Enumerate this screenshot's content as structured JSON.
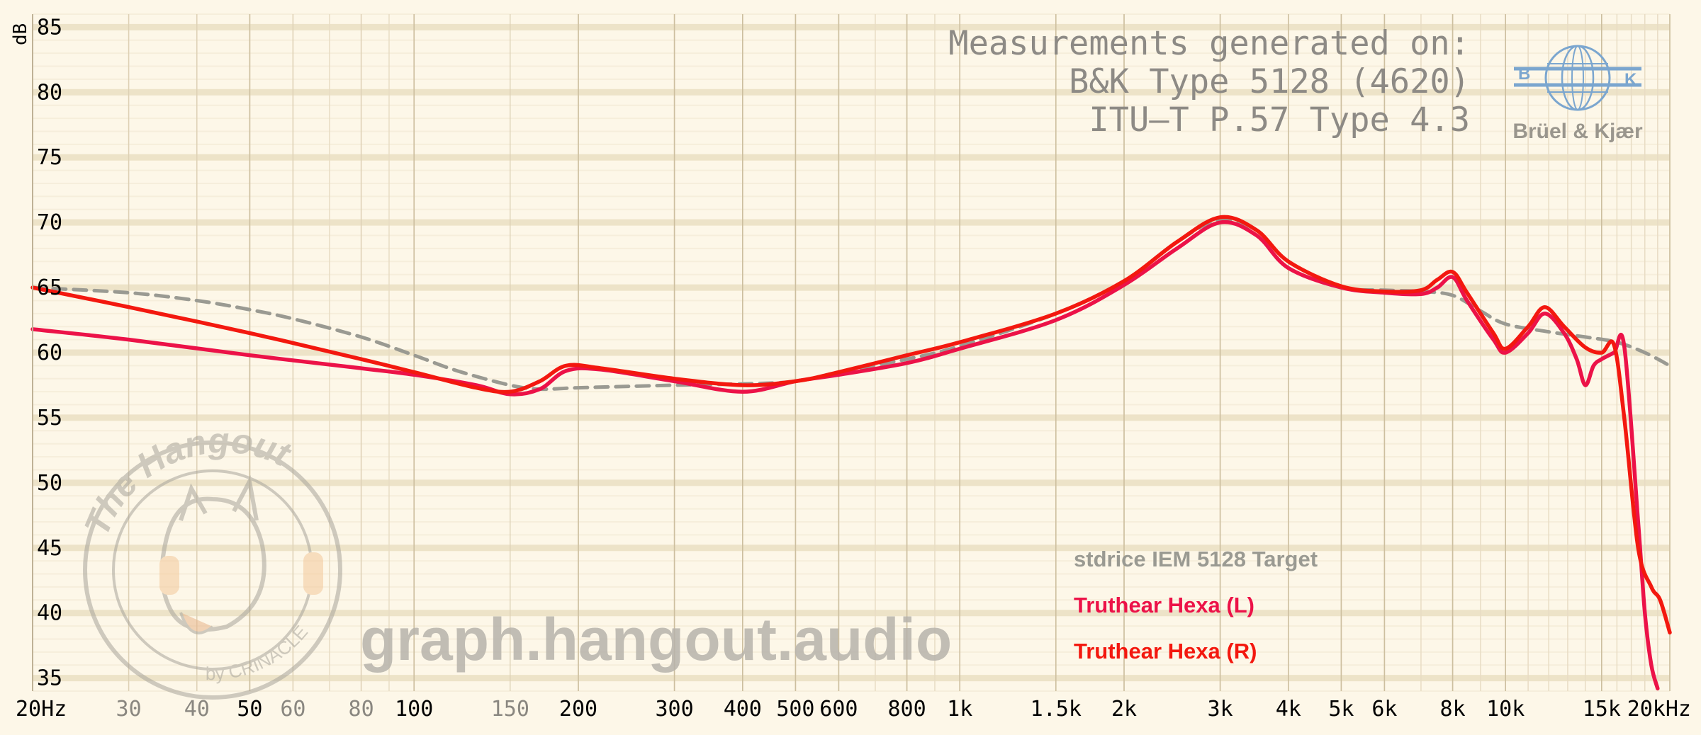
{
  "chart_data": {
    "type": "line",
    "ylabel": "dB",
    "xscale": "log",
    "xlim": [
      20,
      20000
    ],
    "ylim": [
      34,
      86
    ],
    "grid": true,
    "x_ticks": [
      {
        "value": 20,
        "label": "20Hz",
        "major": true
      },
      {
        "value": 30,
        "label": "30",
        "major": false
      },
      {
        "value": 40,
        "label": "40",
        "major": false
      },
      {
        "value": 50,
        "label": "50",
        "major": true
      },
      {
        "value": 60,
        "label": "60",
        "major": false
      },
      {
        "value": 80,
        "label": "80",
        "major": false
      },
      {
        "value": 100,
        "label": "100",
        "major": true
      },
      {
        "value": 150,
        "label": "150",
        "major": false
      },
      {
        "value": 200,
        "label": "200",
        "major": true
      },
      {
        "value": 300,
        "label": "300",
        "major": true
      },
      {
        "value": 400,
        "label": "400",
        "major": true
      },
      {
        "value": 500,
        "label": "500",
        "major": true
      },
      {
        "value": 600,
        "label": "600",
        "major": true
      },
      {
        "value": 800,
        "label": "800",
        "major": true
      },
      {
        "value": 1000,
        "label": "1k",
        "major": true
      },
      {
        "value": 1500,
        "label": "1.5k",
        "major": true
      },
      {
        "value": 2000,
        "label": "2k",
        "major": true
      },
      {
        "value": 3000,
        "label": "3k",
        "major": true
      },
      {
        "value": 4000,
        "label": "4k",
        "major": true
      },
      {
        "value": 5000,
        "label": "5k",
        "major": true
      },
      {
        "value": 6000,
        "label": "6k",
        "major": true
      },
      {
        "value": 8000,
        "label": "8k",
        "major": true
      },
      {
        "value": 10000,
        "label": "10k",
        "major": true
      },
      {
        "value": 15000,
        "label": "15k",
        "major": true
      },
      {
        "value": 20000,
        "label": "20kHz",
        "major": true
      }
    ],
    "y_ticks": [
      35,
      40,
      45,
      50,
      55,
      60,
      65,
      70,
      75,
      80,
      85
    ],
    "series": [
      {
        "name": "stdrice IEM 5128 Target",
        "color": "#9a9a92",
        "dash": true,
        "x": [
          20,
          30,
          40,
          50,
          60,
          80,
          100,
          120,
          150,
          170,
          200,
          300,
          400,
          500,
          600,
          800,
          1000,
          1500,
          2000,
          2500,
          3000,
          3500,
          4000,
          5000,
          6000,
          7000,
          8000,
          9000,
          10000,
          12000,
          14000,
          16000,
          18000,
          20000
        ],
        "values": [
          65.0,
          64.6,
          64.0,
          63.3,
          62.6,
          61.2,
          59.8,
          58.6,
          57.5,
          57.2,
          57.3,
          57.5,
          57.6,
          57.8,
          58.5,
          59.5,
          60.5,
          63.0,
          65.5,
          68.5,
          70.2,
          69.0,
          66.5,
          65.0,
          64.8,
          64.7,
          64.4,
          63.2,
          62.2,
          61.6,
          61.2,
          60.8,
          60.0,
          59.0
        ]
      },
      {
        "name": "Truthear Hexa (L)",
        "color": "#ec1248",
        "dash": false,
        "x": [
          20,
          30,
          50,
          80,
          100,
          130,
          150,
          170,
          190,
          220,
          300,
          400,
          500,
          600,
          800,
          1000,
          1500,
          2000,
          2500,
          3000,
          3500,
          4000,
          5000,
          6000,
          7000,
          7500,
          8000,
          8500,
          9500,
          10000,
          11000,
          11800,
          12800,
          13500,
          14000,
          14500,
          15000,
          15800,
          16500,
          17500,
          18000,
          18500,
          19000
        ],
        "values": [
          61.8,
          61.0,
          59.8,
          58.8,
          58.3,
          57.5,
          56.8,
          57.2,
          58.6,
          58.7,
          57.8,
          57.0,
          57.8,
          58.3,
          59.2,
          60.3,
          62.5,
          65.2,
          68.0,
          70.0,
          69.0,
          66.5,
          65.0,
          64.6,
          64.5,
          65.0,
          65.8,
          64.0,
          61.0,
          60.0,
          61.5,
          63.0,
          61.5,
          59.5,
          57.5,
          59.0,
          59.5,
          60.0,
          60.5,
          47.0,
          40.0,
          36.0,
          34.2
        ]
      },
      {
        "name": "Truthear Hexa (R)",
        "color": "#f3180f",
        "dash": false,
        "x": [
          20,
          30,
          50,
          80,
          100,
          130,
          150,
          170,
          190,
          220,
          300,
          400,
          500,
          600,
          800,
          1000,
          1500,
          2000,
          2500,
          3000,
          3500,
          4000,
          5000,
          6000,
          7000,
          7500,
          8000,
          8500,
          9500,
          10000,
          11000,
          11800,
          12800,
          14000,
          15000,
          15800,
          16500,
          17500,
          18500,
          19200,
          20000
        ],
        "values": [
          65.0,
          63.5,
          61.5,
          59.5,
          58.5,
          57.3,
          57.0,
          57.8,
          59.0,
          58.8,
          58.0,
          57.5,
          57.8,
          58.5,
          59.8,
          60.8,
          63.0,
          65.5,
          68.5,
          70.4,
          69.4,
          67.0,
          65.1,
          64.7,
          64.8,
          65.6,
          66.2,
          64.6,
          61.5,
          60.3,
          62.0,
          63.5,
          62.0,
          60.4,
          60.0,
          60.6,
          55.0,
          45.0,
          42.0,
          41.0,
          38.5
        ]
      }
    ],
    "annotations": [
      "Measurements generated on:",
      "B&K Type 5128 (4620)",
      "ITU–T P.57 Type 4.3"
    ],
    "brand": "Brüel & Kjær",
    "brand_logo_letters": [
      "B",
      "K"
    ],
    "watermark": "graph.hangout.audio",
    "watermark_logo_text": [
      "The Hangout",
      "by CRINACLE"
    ],
    "legend_placement": "bottom-center"
  }
}
